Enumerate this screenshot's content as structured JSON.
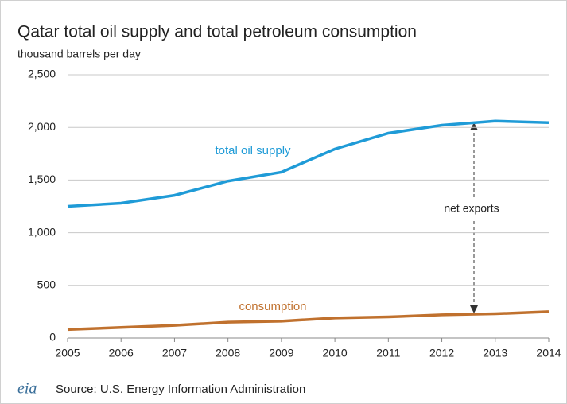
{
  "chart_data": {
    "type": "line",
    "title": "Qatar total oil supply and total petroleum consumption",
    "subtitle": "thousand barrels per day",
    "x": [
      2005,
      2006,
      2007,
      2008,
      2009,
      2010,
      2011,
      2012,
      2013,
      2014
    ],
    "xlim": [
      2005,
      2014
    ],
    "xticks": [
      2005,
      2006,
      2007,
      2008,
      2009,
      2010,
      2011,
      2012,
      2013,
      2014
    ],
    "ylim": [
      0,
      2500
    ],
    "yticks": [
      0,
      500,
      {
        "value": 1000,
        "label": "1,000"
      },
      {
        "value": 1500,
        "label": "1,500"
      },
      {
        "value": 2000,
        "label": "2,000"
      },
      {
        "value": 2500,
        "label": "2,500"
      }
    ],
    "grid": true,
    "series": [
      {
        "name": "total oil supply",
        "color": "#1f9bd7",
        "values": [
          1250,
          1280,
          1355,
          1490,
          1575,
          1795,
          1945,
          2020,
          2060,
          2045
        ]
      },
      {
        "name": "consumption",
        "color": "#c0712e",
        "values": [
          80,
          100,
          120,
          150,
          160,
          190,
          200,
          220,
          230,
          250
        ]
      }
    ],
    "annotations": [
      "net exports"
    ],
    "source": "Source: U.S. Energy Information  Administration",
    "logo": "eia"
  }
}
